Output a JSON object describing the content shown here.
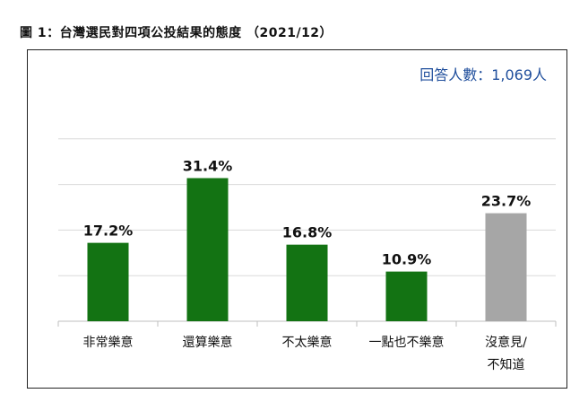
{
  "title": "圖 1：台灣選民對四項公投結果的態度 （2021/12）",
  "sample_label": "回答人數：1,069人",
  "colors": {
    "main": "#137313",
    "neutral": "#a6a6a6",
    "grid": "#d9d9d9",
    "axis": "#bfbfbf",
    "sample": "#1f4e9c"
  },
  "chart_data": {
    "type": "bar",
    "categories": [
      "非常樂意",
      "還算樂意",
      "不太樂意",
      "一點也不樂意",
      "沒意見/不知道"
    ],
    "category_lines": [
      [
        "非常樂意"
      ],
      [
        "還算樂意"
      ],
      [
        "不太樂意"
      ],
      [
        "一點也不樂意"
      ],
      [
        "沒意見/",
        "不知道"
      ]
    ],
    "values": [
      17.2,
      31.4,
      16.8,
      10.9,
      23.7
    ],
    "value_labels": [
      "17.2%",
      "31.4%",
      "16.8%",
      "10.9%",
      "23.7%"
    ],
    "bar_colors": [
      "#137313",
      "#137313",
      "#137313",
      "#137313",
      "#a6a6a6"
    ],
    "ylim": [
      0,
      50
    ],
    "gridlines": [
      10,
      20,
      30,
      40
    ],
    "grid": true
  }
}
